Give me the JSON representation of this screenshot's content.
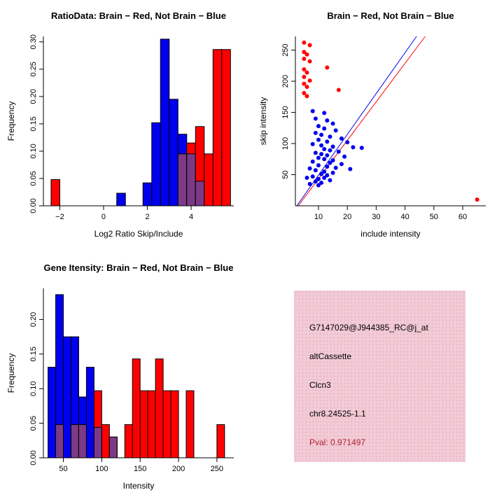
{
  "page": {
    "background": "#FFFFFF"
  },
  "colors": {
    "blue": "#0000EE",
    "red": "#FF0000",
    "overlap": "#7C3A86",
    "axis": "#000000"
  },
  "chart_data": [
    {
      "type": "bar",
      "variant": "overlaid-histogram",
      "title": "RatioData: Brain − Red, Not Brain − Blue",
      "xlabel": "Log2 Ratio Skip/Include",
      "ylabel": "Frequency",
      "xlim": [
        -2.75,
        5.95
      ],
      "ylim": [
        0,
        0.31
      ],
      "xticks": [
        -2,
        0,
        2,
        4
      ],
      "xtick_labels": [
        "−2",
        "0",
        "2",
        "4"
      ],
      "yticks": [
        0,
        0.05,
        0.1,
        0.15,
        0.2,
        0.25,
        0.3
      ],
      "ytick_labels": [
        "0.00",
        "0.05",
        "0.10",
        "0.15",
        "0.20",
        "0.25",
        "0.30"
      ],
      "legend": {
        "red": "Brain",
        "blue": "Not Brain"
      },
      "bars": [
        {
          "x0": -2.4,
          "x1": -2.0,
          "blue": 0,
          "red": 0.048
        },
        {
          "x0": 0.6,
          "x1": 1.0,
          "blue": 0.023,
          "red": 0
        },
        {
          "x0": 1.8,
          "x1": 2.2,
          "blue": 0.042,
          "red": 0
        },
        {
          "x0": 2.2,
          "x1": 2.6,
          "blue": 0.152,
          "red": 0
        },
        {
          "x0": 2.6,
          "x1": 3.0,
          "blue": 0.305,
          "red": 0
        },
        {
          "x0": 3.0,
          "x1": 3.4,
          "blue": 0.195,
          "red": 0
        },
        {
          "x0": 3.4,
          "x1": 3.8,
          "blue": 0.131,
          "red": 0.095
        },
        {
          "x0": 3.8,
          "x1": 4.2,
          "blue": 0.095,
          "red": 0.115
        },
        {
          "x0": 4.2,
          "x1": 4.6,
          "blue": 0.045,
          "red": 0.145
        },
        {
          "x0": 4.6,
          "x1": 5.0,
          "blue": 0,
          "red": 0.095
        },
        {
          "x0": 5.0,
          "x1": 5.4,
          "blue": 0,
          "red": 0.286
        },
        {
          "x0": 5.4,
          "x1": 5.8,
          "blue": 0,
          "red": 0.286
        }
      ]
    },
    {
      "type": "scatter",
      "title": "Brain − Red, Not Brain − Blue",
      "xlabel": "include intensity",
      "ylabel": "skip intensity",
      "xlim": [
        2,
        68
      ],
      "ylim": [
        0,
        272
      ],
      "xticks": [
        10,
        20,
        30,
        40,
        50,
        60
      ],
      "xtick_labels": [
        "10",
        "20",
        "30",
        "40",
        "50",
        "60"
      ],
      "yticks": [
        50,
        100,
        150,
        200,
        250
      ],
      "ytick_labels": [
        "50",
        "100",
        "150",
        "200",
        "250"
      ],
      "lines": [
        {
          "color": "#0000EE",
          "x1": 2.5,
          "y1": 0,
          "x2": 44,
          "y2": 272
        },
        {
          "color": "#FF0000",
          "x1": 3.0,
          "y1": 0,
          "x2": 47,
          "y2": 272
        }
      ],
      "series": [
        {
          "name": "Brain",
          "color": "#FF0000",
          "points": [
            [
              5,
              262
            ],
            [
              7,
              258
            ],
            [
              5,
              247
            ],
            [
              6,
              243
            ],
            [
              5,
              236
            ],
            [
              7,
              232
            ],
            [
              13,
              222
            ],
            [
              5,
              219
            ],
            [
              6,
              214
            ],
            [
              5,
              207
            ],
            [
              7,
              201
            ],
            [
              5,
              196
            ],
            [
              6,
              191
            ],
            [
              17,
              186
            ],
            [
              5,
              181
            ],
            [
              6,
              176
            ],
            [
              65,
              10
            ]
          ]
        },
        {
          "name": "Not Brain",
          "color": "#0000EE",
          "points": [
            [
              8,
              152
            ],
            [
              12,
              149
            ],
            [
              9,
              140
            ],
            [
              13,
              137
            ],
            [
              15,
              132
            ],
            [
              10,
              128
            ],
            [
              12,
              124
            ],
            [
              16,
              121
            ],
            [
              9,
              117
            ],
            [
              11,
              114
            ],
            [
              14,
              111
            ],
            [
              18,
              108
            ],
            [
              10,
              106
            ],
            [
              13,
              103
            ],
            [
              20,
              102
            ],
            [
              8,
              99
            ],
            [
              11,
              97
            ],
            [
              15,
              95
            ],
            [
              22,
              94
            ],
            [
              25,
              93
            ],
            [
              12,
              91
            ],
            [
              14,
              89
            ],
            [
              17,
              87
            ],
            [
              9,
              85
            ],
            [
              11,
              83
            ],
            [
              13,
              81
            ],
            [
              19,
              79
            ],
            [
              10,
              77
            ],
            [
              12,
              75
            ],
            [
              15,
              73
            ],
            [
              8,
              71
            ],
            [
              14,
              69
            ],
            [
              18,
              67
            ],
            [
              10,
              65
            ],
            [
              13,
              63
            ],
            [
              16,
              61
            ],
            [
              21,
              59
            ],
            [
              9,
              57
            ],
            [
              12,
              55
            ],
            [
              15,
              53
            ],
            [
              11,
              51
            ],
            [
              13,
              49
            ],
            [
              8,
              47
            ],
            [
              12,
              45
            ],
            [
              10,
              43
            ],
            [
              14,
              41
            ],
            [
              9,
              39
            ],
            [
              11,
              37
            ],
            [
              7,
              35
            ],
            [
              10,
              33
            ],
            [
              6,
              45
            ],
            [
              7,
              60
            ]
          ]
        }
      ]
    },
    {
      "type": "bar",
      "variant": "overlaid-histogram",
      "title": "Gene Itensity: Brain − Red, Not Brain − Blue",
      "xlabel": "Intensity",
      "ylabel": "Frequency",
      "xlim": [
        24,
        272
      ],
      "ylim": [
        0,
        0.245
      ],
      "xticks": [
        50,
        100,
        150,
        200,
        250
      ],
      "xtick_labels": [
        "50",
        "100",
        "150",
        "200",
        "250"
      ],
      "yticks": [
        0,
        0.05,
        0.1,
        0.15,
        0.2
      ],
      "ytick_labels": [
        "0.00",
        "0.05",
        "0.10",
        "0.15",
        "0.20"
      ],
      "legend": {
        "red": "Brain",
        "blue": "Not Brain"
      },
      "bars": [
        {
          "x0": 30,
          "x1": 40,
          "blue": 0.131,
          "red": 0
        },
        {
          "x0": 40,
          "x1": 50,
          "blue": 0.236,
          "red": 0.048
        },
        {
          "x0": 50,
          "x1": 60,
          "blue": 0.175,
          "red": 0
        },
        {
          "x0": 60,
          "x1": 70,
          "blue": 0.175,
          "red": 0.048
        },
        {
          "x0": 70,
          "x1": 80,
          "blue": 0.088,
          "red": 0.048
        },
        {
          "x0": 80,
          "x1": 90,
          "blue": 0.131,
          "red": 0
        },
        {
          "x0": 90,
          "x1": 100,
          "blue": 0.044,
          "red": 0.097
        },
        {
          "x0": 100,
          "x1": 110,
          "blue": 0,
          "red": 0.048
        },
        {
          "x0": 110,
          "x1": 120,
          "blue": 0.03,
          "red": 0.03
        },
        {
          "x0": 130,
          "x1": 140,
          "blue": 0,
          "red": 0.048
        },
        {
          "x0": 140,
          "x1": 150,
          "blue": 0,
          "red": 0.143
        },
        {
          "x0": 150,
          "x1": 160,
          "blue": 0,
          "red": 0.097
        },
        {
          "x0": 160,
          "x1": 170,
          "blue": 0,
          "red": 0.097
        },
        {
          "x0": 170,
          "x1": 180,
          "blue": 0,
          "red": 0.143
        },
        {
          "x0": 180,
          "x1": 190,
          "blue": 0,
          "red": 0.097
        },
        {
          "x0": 190,
          "x1": 200,
          "blue": 0,
          "red": 0.097
        },
        {
          "x0": 210,
          "x1": 220,
          "blue": 0,
          "red": 0.097
        },
        {
          "x0": 250,
          "x1": 260,
          "blue": 0,
          "red": 0.048
        }
      ]
    }
  ],
  "info_box": {
    "probe_id": "G7147029@J944385_RC@j_at",
    "event_type": "altCassette",
    "gene": "Clcn3",
    "location": "chr8.24525-1.1",
    "pval": "Pval: 0.971497",
    "background": "#F2CBD6",
    "pval_color": "#B22230"
  }
}
